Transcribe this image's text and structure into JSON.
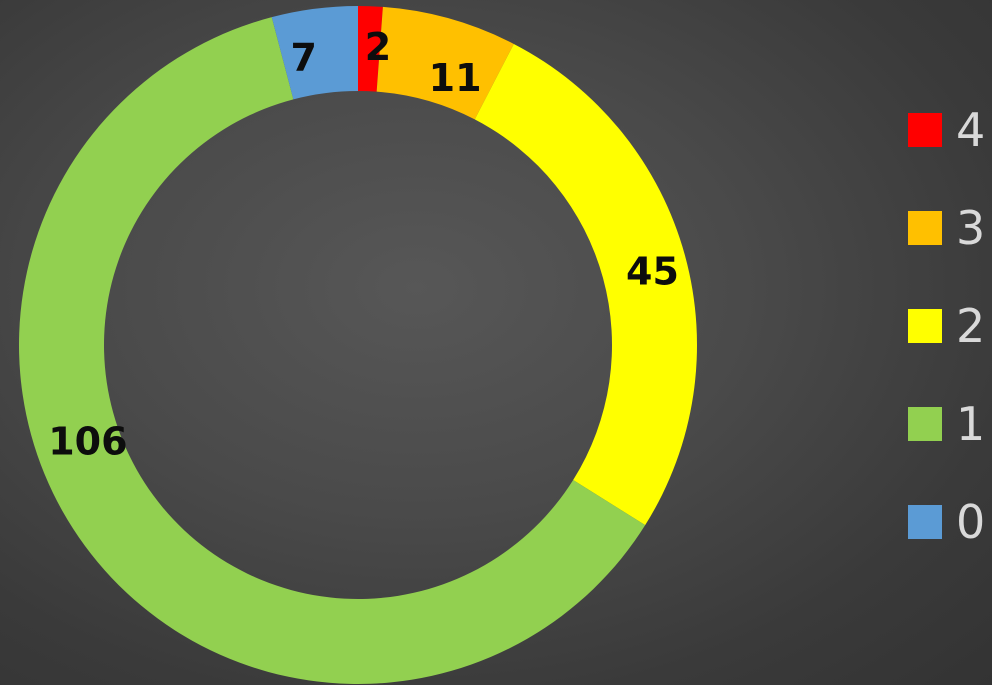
{
  "chart_data": {
    "type": "pie",
    "variant": "doughnut",
    "title": "",
    "start_category": "4",
    "direction": "clockwise",
    "slices": [
      {
        "label": "4",
        "value": 2,
        "color": "#ff0000"
      },
      {
        "label": "3",
        "value": 11,
        "color": "#ffc000"
      },
      {
        "label": "2",
        "value": 45,
        "color": "#ffff00"
      },
      {
        "label": "1",
        "value": 106,
        "color": "#92d050"
      },
      {
        "label": "0",
        "value": 7,
        "color": "#5b9bd5"
      }
    ],
    "legend": {
      "position": "right",
      "entries": [
        "4",
        "3",
        "2",
        "1",
        "0"
      ]
    },
    "background_color": "#404040",
    "label_color": "#0d0d0d",
    "legend_text_color": "#d9d9d9"
  }
}
